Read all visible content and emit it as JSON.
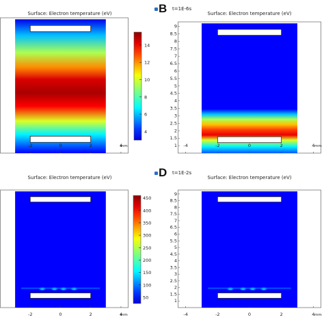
{
  "colors": {
    "frame": "#777777",
    "electrode": "#ffffff",
    "icon": "#2a6fc9"
  },
  "chart_data": [
    {
      "id": "A",
      "type": "heatmap",
      "panel_label": "",
      "title": "Surface: Electron temperature (eV)",
      "time": "",
      "x_unit": "mm",
      "x_ticks": [
        -2,
        0,
        2,
        4
      ],
      "xlim": [
        -4,
        4.5
      ],
      "ylim": [
        0.5,
        9.3
      ],
      "domain": {
        "x": [
          -3,
          3
        ],
        "y": [
          0.5,
          9.2
        ]
      },
      "y_ticks": [],
      "electrodes": [
        {
          "x": [
            -2,
            2
          ],
          "y": [
            8.4,
            8.8
          ]
        },
        {
          "x": [
            -2,
            2
          ],
          "y": [
            1.2,
            1.6
          ]
        }
      ],
      "field": "hot_band",
      "colorbar": {
        "ticks": [
          4,
          6,
          8,
          10,
          12,
          14
        ],
        "range": [
          3,
          15.5
        ]
      }
    },
    {
      "id": "B",
      "type": "heatmap",
      "panel_label": "B",
      "title": "Surface: Electron temperature (eV)",
      "time": "t=1E-6s",
      "x_unit": "mm",
      "x_ticks": [
        -4,
        -2,
        0,
        2,
        4
      ],
      "xlim": [
        -4.5,
        4.5
      ],
      "ylim": [
        0.5,
        9.3
      ],
      "domain": {
        "x": [
          -3,
          3
        ],
        "y": [
          0.5,
          9.2
        ]
      },
      "y_ticks": [
        1,
        1.5,
        2,
        2.5,
        3,
        3.5,
        4,
        4.5,
        5,
        5.5,
        6,
        6.5,
        7,
        7.5,
        8,
        8.5,
        9
      ],
      "electrodes": [
        {
          "x": [
            -2,
            2
          ],
          "y": [
            8.4,
            8.8
          ]
        },
        {
          "x": [
            -2,
            2
          ],
          "y": [
            1.2,
            1.6
          ]
        }
      ],
      "field": "bottom_band",
      "colorbar": null
    },
    {
      "id": "C",
      "type": "heatmap",
      "panel_label": "",
      "title": "Surface: Electron temperature (eV)",
      "time": "",
      "x_unit": "mm",
      "x_ticks": [
        -2,
        0,
        2,
        4
      ],
      "xlim": [
        -4,
        4.5
      ],
      "ylim": [
        0.5,
        9.3
      ],
      "domain": {
        "x": [
          -3,
          3
        ],
        "y": [
          0.5,
          9.2
        ]
      },
      "y_ticks": [],
      "electrodes": [
        {
          "x": [
            -2,
            2
          ],
          "y": [
            8.4,
            8.8
          ]
        },
        {
          "x": [
            -2,
            2
          ],
          "y": [
            1.2,
            1.6
          ]
        }
      ],
      "field": "cold_spots",
      "colorbar": {
        "ticks": [
          50,
          100,
          150,
          200,
          250,
          300,
          350,
          400,
          450
        ],
        "range": [
          25,
          460
        ]
      }
    },
    {
      "id": "D",
      "type": "heatmap",
      "panel_label": "D",
      "title": "Surface: Electron temperature (eV)",
      "time": "t=1E-2s",
      "x_unit": "mm",
      "x_ticks": [
        -4,
        -2,
        0,
        2,
        4
      ],
      "xlim": [
        -4.5,
        4.5
      ],
      "ylim": [
        0.5,
        9.3
      ],
      "domain": {
        "x": [
          -3,
          3
        ],
        "y": [
          0.5,
          9.2
        ]
      },
      "y_ticks": [
        1,
        1.5,
        2,
        2.5,
        3,
        3.5,
        4,
        4.5,
        5,
        5.5,
        6,
        6.5,
        7,
        7.5,
        8,
        8.5,
        9
      ],
      "electrodes": [
        {
          "x": [
            -2,
            2
          ],
          "y": [
            8.4,
            8.8
          ]
        },
        {
          "x": [
            -2,
            2
          ],
          "y": [
            1.2,
            1.6
          ]
        }
      ],
      "field": "cold_spots",
      "colorbar": null
    }
  ]
}
